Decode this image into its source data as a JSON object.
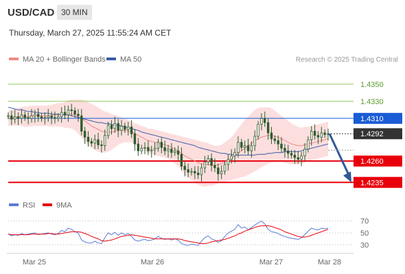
{
  "header": {
    "pair": "USD/CAD",
    "timeframe": "30 MIN",
    "datetime": "Thursday, March 27, 2025 11:55:24 AM CET"
  },
  "legend": {
    "ma20": "MA 20 + Bollinger Bands",
    "ma50": "MA 50",
    "copyright": "Research © 2025 Trading Central"
  },
  "rsi_legend": {
    "rsi": "RSI",
    "ma9": "9MA"
  },
  "colors": {
    "resistance_green": "#8fc45a",
    "pivot_blue": "#1a5bd6",
    "support_red": "#e8000b",
    "ma20": "#f08a84",
    "band_fill": "#fbd3d3",
    "ma50": "#3b5aa5",
    "candle": "#2d5c2d",
    "arrow": "#2f5a97",
    "last_price": "#333333"
  },
  "chart_data": [
    {
      "type": "candlestick",
      "ylim": [
        1.422,
        1.437
      ],
      "x_ticks": [
        "Mar 25",
        "Mar 26",
        "Mar 27",
        "Mar 28"
      ],
      "levels": [
        {
          "label": "1.4350",
          "value": 1.435,
          "kind": "resistance"
        },
        {
          "label": "1.4330",
          "value": 1.433,
          "kind": "resistance"
        },
        {
          "label": "1.4310",
          "value": 1.431,
          "kind": "pivot"
        },
        {
          "label": "1.4260",
          "value": 1.426,
          "kind": "support"
        },
        {
          "label": "1.4235",
          "value": 1.4235,
          "kind": "support"
        }
      ],
      "last_price": {
        "label": "1.4292",
        "value": 1.4292
      },
      "close": [
        1.4313,
        1.4309,
        1.4312,
        1.431,
        1.4314,
        1.4311,
        1.431,
        1.4313,
        1.4315,
        1.4312,
        1.431,
        1.4311,
        1.4313,
        1.4311,
        1.431,
        1.4312,
        1.4317,
        1.4314,
        1.432,
        1.4319,
        1.4315,
        1.4313,
        1.4295,
        1.4288,
        1.4283,
        1.4281,
        1.4285,
        1.4279,
        1.4278,
        1.429,
        1.4302,
        1.4298,
        1.4304,
        1.4296,
        1.4301,
        1.4297,
        1.43,
        1.4292,
        1.428,
        1.4272,
        1.4275,
        1.4276,
        1.4272,
        1.4273,
        1.4275,
        1.4282,
        1.4276,
        1.4272,
        1.4274,
        1.427,
        1.4272,
        1.4268,
        1.4254,
        1.425,
        1.4247,
        1.4248,
        1.4246,
        1.4244,
        1.4252,
        1.4259,
        1.4263,
        1.4255,
        1.4252,
        1.4245,
        1.4248,
        1.4256,
        1.4262,
        1.4266,
        1.427,
        1.4282,
        1.4276,
        1.4278,
        1.4272,
        1.4278,
        1.4289,
        1.4303,
        1.431,
        1.4305,
        1.4293,
        1.4286,
        1.4284,
        1.428,
        1.4275,
        1.4272,
        1.4269,
        1.4267,
        1.4264,
        1.4262,
        1.4266,
        1.4274,
        1.4285,
        1.4295,
        1.429,
        1.4288,
        1.4293,
        1.4291,
        1.4292
      ],
      "ma20": [
        1.431,
        1.4311,
        1.4311,
        1.4312,
        1.4312,
        1.4312,
        1.4312,
        1.4313,
        1.4313,
        1.4313,
        1.4313,
        1.4313,
        1.4313,
        1.4313,
        1.4314,
        1.4314,
        1.4314,
        1.4314,
        1.4315,
        1.4315,
        1.4314,
        1.4312,
        1.431,
        1.4307,
        1.4304,
        1.4301,
        1.4299,
        1.4297,
        1.4295,
        1.4294,
        1.4294,
        1.4294,
        1.4295,
        1.4296,
        1.4296,
        1.4296,
        1.4295,
        1.4294,
        1.4292,
        1.429,
        1.4288,
        1.4286,
        1.4284,
        1.4283,
        1.4282,
        1.4281,
        1.428,
        1.4279,
        1.4278,
        1.4276,
        1.4274,
        1.4272,
        1.4269,
        1.4266,
        1.4264,
        1.4262,
        1.426,
        1.4258,
        1.4257,
        1.4256,
        1.4256,
        1.4255,
        1.4255,
        1.4256,
        1.4257,
        1.4259,
        1.4261,
        1.4263,
        1.4266,
        1.4269,
        1.4272,
        1.4275,
        1.4278,
        1.4281,
        1.4284,
        1.4286,
        1.4288,
        1.4289,
        1.429,
        1.429,
        1.4289,
        1.4288,
        1.4286,
        1.4284,
        1.4282,
        1.428,
        1.4279,
        1.4278,
        1.4278,
        1.4279,
        1.428,
        1.4281,
        1.4282,
        1.4283,
        1.4284,
        1.4285,
        1.4286
      ],
      "band_width": [
        0.0009,
        0.0009,
        0.001,
        0.001,
        0.0011,
        0.0012,
        0.0012,
        0.0012,
        0.0012,
        0.0012,
        0.0012,
        0.0012,
        0.0012,
        0.0013,
        0.0013,
        0.0014,
        0.0014,
        0.0015,
        0.0016,
        0.0017,
        0.0018,
        0.002,
        0.0022,
        0.0024,
        0.0025,
        0.0026,
        0.0026,
        0.0026,
        0.0025,
        0.0024,
        0.0023,
        0.0021,
        0.0019,
        0.0017,
        0.0015,
        0.0014,
        0.0013,
        0.0012,
        0.0012,
        0.0013,
        0.0013,
        0.0014,
        0.0014,
        0.0015,
        0.0015,
        0.0015,
        0.0015,
        0.0015,
        0.0015,
        0.0016,
        0.0017,
        0.0018,
        0.002,
        0.0022,
        0.0023,
        0.0024,
        0.0025,
        0.0026,
        0.0026,
        0.0026,
        0.0025,
        0.0024,
        0.0023,
        0.0022,
        0.0022,
        0.0023,
        0.0024,
        0.0025,
        0.0027,
        0.0029,
        0.0031,
        0.0033,
        0.0034,
        0.0035,
        0.0036,
        0.0036,
        0.0035,
        0.0034,
        0.0033,
        0.0032,
        0.003,
        0.0028,
        0.0027,
        0.0026,
        0.0025,
        0.0024,
        0.0023,
        0.0022,
        0.0021,
        0.0021,
        0.002,
        0.002,
        0.002,
        0.002,
        0.002,
        0.002,
        0.002
      ],
      "ma50": [
        1.4323,
        1.4322,
        1.4321,
        1.432,
        1.432,
        1.4319,
        1.4318,
        1.4318,
        1.4317,
        1.4317,
        1.4316,
        1.4316,
        1.4316,
        1.4315,
        1.4315,
        1.4315,
        1.4314,
        1.4314,
        1.4314,
        1.4313,
        1.4312,
        1.4311,
        1.431,
        1.4309,
        1.4308,
        1.4307,
        1.4306,
        1.4305,
        1.4305,
        1.4304,
        1.4304,
        1.4303,
        1.4302,
        1.4302,
        1.4301,
        1.43,
        1.4299,
        1.4298,
        1.4297,
        1.4296,
        1.4294,
        1.4293,
        1.4292,
        1.4291,
        1.429,
        1.4289,
        1.4288,
        1.4287,
        1.4286,
        1.4285,
        1.4284,
        1.4283,
        1.4282,
        1.4281,
        1.428,
        1.4279,
        1.4278,
        1.4276,
        1.4275,
        1.4274,
        1.4273,
        1.4272,
        1.4271,
        1.427,
        1.4269,
        1.4269,
        1.4268,
        1.4268,
        1.4267,
        1.4267,
        1.4267,
        1.4267,
        1.4267,
        1.4267,
        1.4267,
        1.4268,
        1.4268,
        1.4268,
        1.4269,
        1.4269,
        1.427,
        1.427,
        1.427,
        1.4271,
        1.4271,
        1.4271,
        1.4271,
        1.4271,
        1.4272,
        1.4273,
        1.4274,
        1.4275,
        1.4276,
        1.4277,
        1.4278,
        1.4279,
        1.428
      ],
      "forecast": {
        "from": 1.4292,
        "to": 1.4235
      }
    },
    {
      "type": "line",
      "yticks": [
        70,
        50,
        30
      ],
      "ylim": [
        20,
        80
      ],
      "rsi": [
        48,
        45,
        47,
        46,
        49,
        47,
        48,
        49,
        50,
        47,
        48,
        49,
        50,
        48,
        47,
        49,
        54,
        52,
        58,
        56,
        52,
        50,
        38,
        35,
        33,
        33,
        36,
        33,
        32,
        42,
        50,
        47,
        51,
        46,
        50,
        47,
        49,
        44,
        38,
        36,
        38,
        39,
        37,
        38,
        40,
        44,
        41,
        39,
        40,
        38,
        40,
        38,
        32,
        30,
        29,
        31,
        30,
        29,
        36,
        42,
        45,
        40,
        38,
        34,
        37,
        44,
        50,
        53,
        56,
        64,
        58,
        60,
        55,
        59,
        63,
        67,
        70,
        65,
        56,
        52,
        51,
        49,
        46,
        44,
        42,
        41,
        40,
        39,
        42,
        47,
        53,
        58,
        56,
        55,
        58,
        57,
        58
      ],
      "ma9": [
        48,
        47,
        47,
        47,
        47,
        47,
        47,
        48,
        48,
        48,
        48,
        48,
        49,
        49,
        48,
        48,
        49,
        50,
        51,
        52,
        52,
        52,
        51,
        49,
        47,
        44,
        42,
        40,
        37,
        36,
        37,
        38,
        40,
        42,
        44,
        45,
        46,
        47,
        46,
        45,
        44,
        43,
        42,
        41,
        40,
        40,
        40,
        40,
        40,
        40,
        40,
        40,
        39,
        37,
        36,
        35,
        34,
        33,
        32,
        32,
        33,
        35,
        36,
        37,
        38,
        39,
        41,
        43,
        45,
        48,
        50,
        53,
        55,
        57,
        59,
        61,
        62,
        62,
        62,
        61,
        59,
        57,
        55,
        52,
        50,
        48,
        46,
        44,
        43,
        43,
        44,
        46,
        48,
        50,
        52,
        54,
        56
      ]
    }
  ]
}
